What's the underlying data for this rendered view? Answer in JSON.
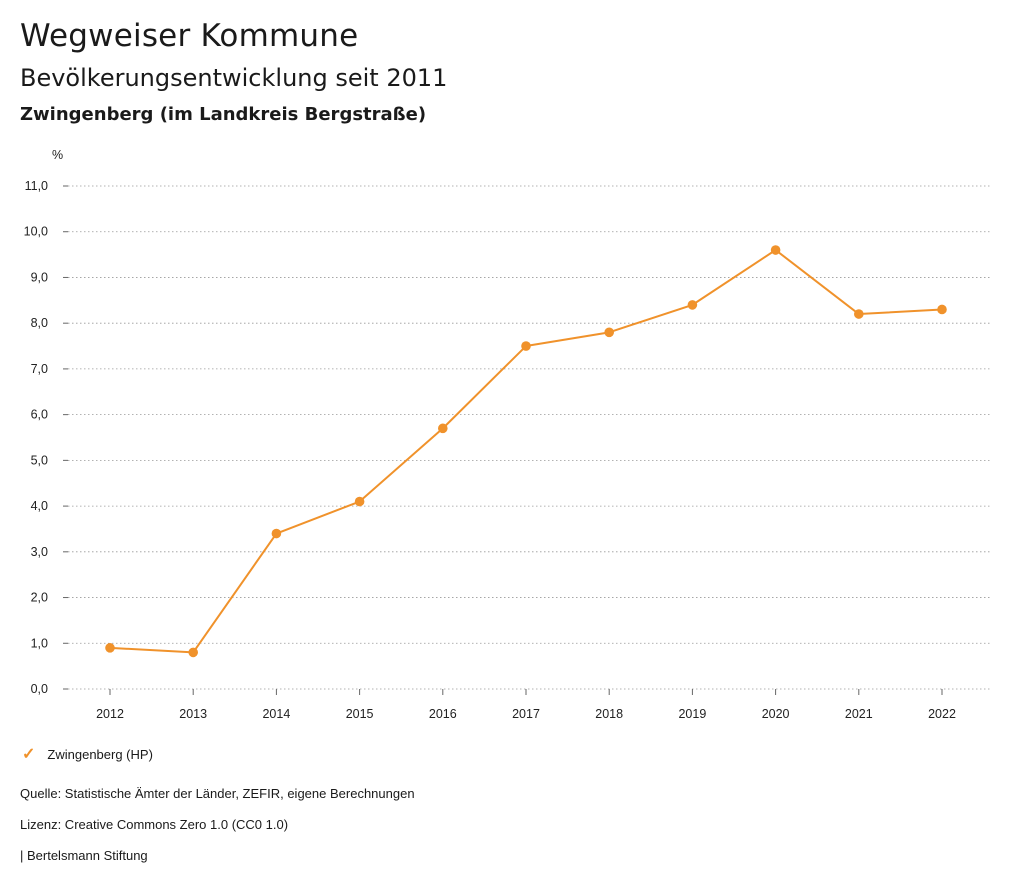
{
  "header": {
    "title": "Wegweiser Kommune",
    "subtitle": "Bevölkerungsentwicklung seit 2011",
    "place": "Zwingenberg (im Landkreis Bergstraße)"
  },
  "chart_data": {
    "type": "line",
    "ylabel": "%",
    "ylim": [
      0,
      11
    ],
    "yticks": [
      "0,0",
      "1,0",
      "2,0",
      "3,0",
      "4,0",
      "5,0",
      "6,0",
      "7,0",
      "8,0",
      "9,0",
      "10,0",
      "11,0"
    ],
    "categories": [
      "2012",
      "2013",
      "2014",
      "2015",
      "2016",
      "2017",
      "2018",
      "2019",
      "2020",
      "2021",
      "2022"
    ],
    "series": [
      {
        "name": "Zwingenberg (HP)",
        "color": "#f0922b",
        "values": [
          0.9,
          0.8,
          3.4,
          4.1,
          5.7,
          7.5,
          7.8,
          8.4,
          9.6,
          8.2,
          8.3
        ]
      }
    ],
    "grid": true,
    "legend_position": "bottom-left"
  },
  "legend": {
    "icon": "check-icon"
  },
  "footer": {
    "source": "Quelle: Statistische Ämter der Länder, ZEFIR, eigene Berechnungen",
    "license": "Lizenz: Creative Commons Zero 1.0 (CC0 1.0)",
    "publisher": "| Bertelsmann Stiftung"
  }
}
